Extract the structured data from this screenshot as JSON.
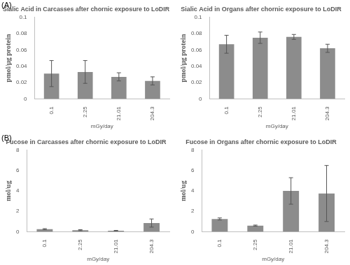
{
  "panel_labels": [
    "(A)",
    "(B)"
  ],
  "chart_data": [
    {
      "type": "bar",
      "title": "Sialic Acid in Carcasses after chornic exposure to LoDIR",
      "x_label": "mGy/day",
      "y_label": "pmol/µg protein",
      "categories": [
        "0.1",
        "2.25",
        "21.01",
        "204.3"
      ],
      "values": [
        0.031,
        0.033,
        0.027,
        0.022
      ],
      "errors": [
        0.016,
        0.014,
        0.005,
        0.005
      ],
      "color": "#8c8c8c",
      "ylim": [
        0,
        0.1
      ],
      "yticks": [
        0,
        0.02,
        0.04,
        0.06,
        0.08,
        0.1
      ],
      "grid": false
    },
    {
      "type": "bar",
      "title": "Sialic Acid in Organs after chornic exposure to LoDIR",
      "x_label": "mGy/day",
      "y_label": "pmol/µg protein",
      "categories": [
        "0.1",
        "2.25",
        "21.01",
        "204.3"
      ],
      "values": [
        0.067,
        0.075,
        0.076,
        0.062
      ],
      "errors": [
        0.011,
        0.007,
        0.003,
        0.005
      ],
      "color": "#8c8c8c",
      "ylim": [
        0,
        0.1
      ],
      "yticks": [
        0,
        0.02,
        0.04,
        0.06,
        0.08,
        0.1
      ],
      "grid": false
    },
    {
      "type": "bar",
      "title": "Fucose in Carcasses after chornic exposure to LoDIR",
      "x_label": "mGy/day",
      "y_label": "mol/ug",
      "categories": [
        "0.1",
        "2.25",
        "21.01",
        "204.3"
      ],
      "values": [
        0.25,
        0.15,
        0.1,
        0.85
      ],
      "errors": [
        0.05,
        0.05,
        0.03,
        0.4
      ],
      "color": "#8c8c8c",
      "ylim": [
        0,
        8
      ],
      "yticks": [
        0,
        2,
        4,
        6,
        8
      ],
      "grid": false
    },
    {
      "type": "bar",
      "title": "Fucose in Organs after chornic exposure to LoDIR",
      "x_label": "mGy/day",
      "y_label": "mol/ug",
      "categories": [
        "0.1",
        "2.25",
        "21.01",
        "204.3"
      ],
      "values": [
        1.25,
        0.6,
        4.0,
        3.75
      ],
      "errors": [
        0.1,
        0.05,
        1.3,
        2.75
      ],
      "color": "#8c8c8c",
      "ylim": [
        0,
        8
      ],
      "yticks": [
        0,
        2,
        4,
        6,
        8
      ],
      "grid": false
    }
  ]
}
